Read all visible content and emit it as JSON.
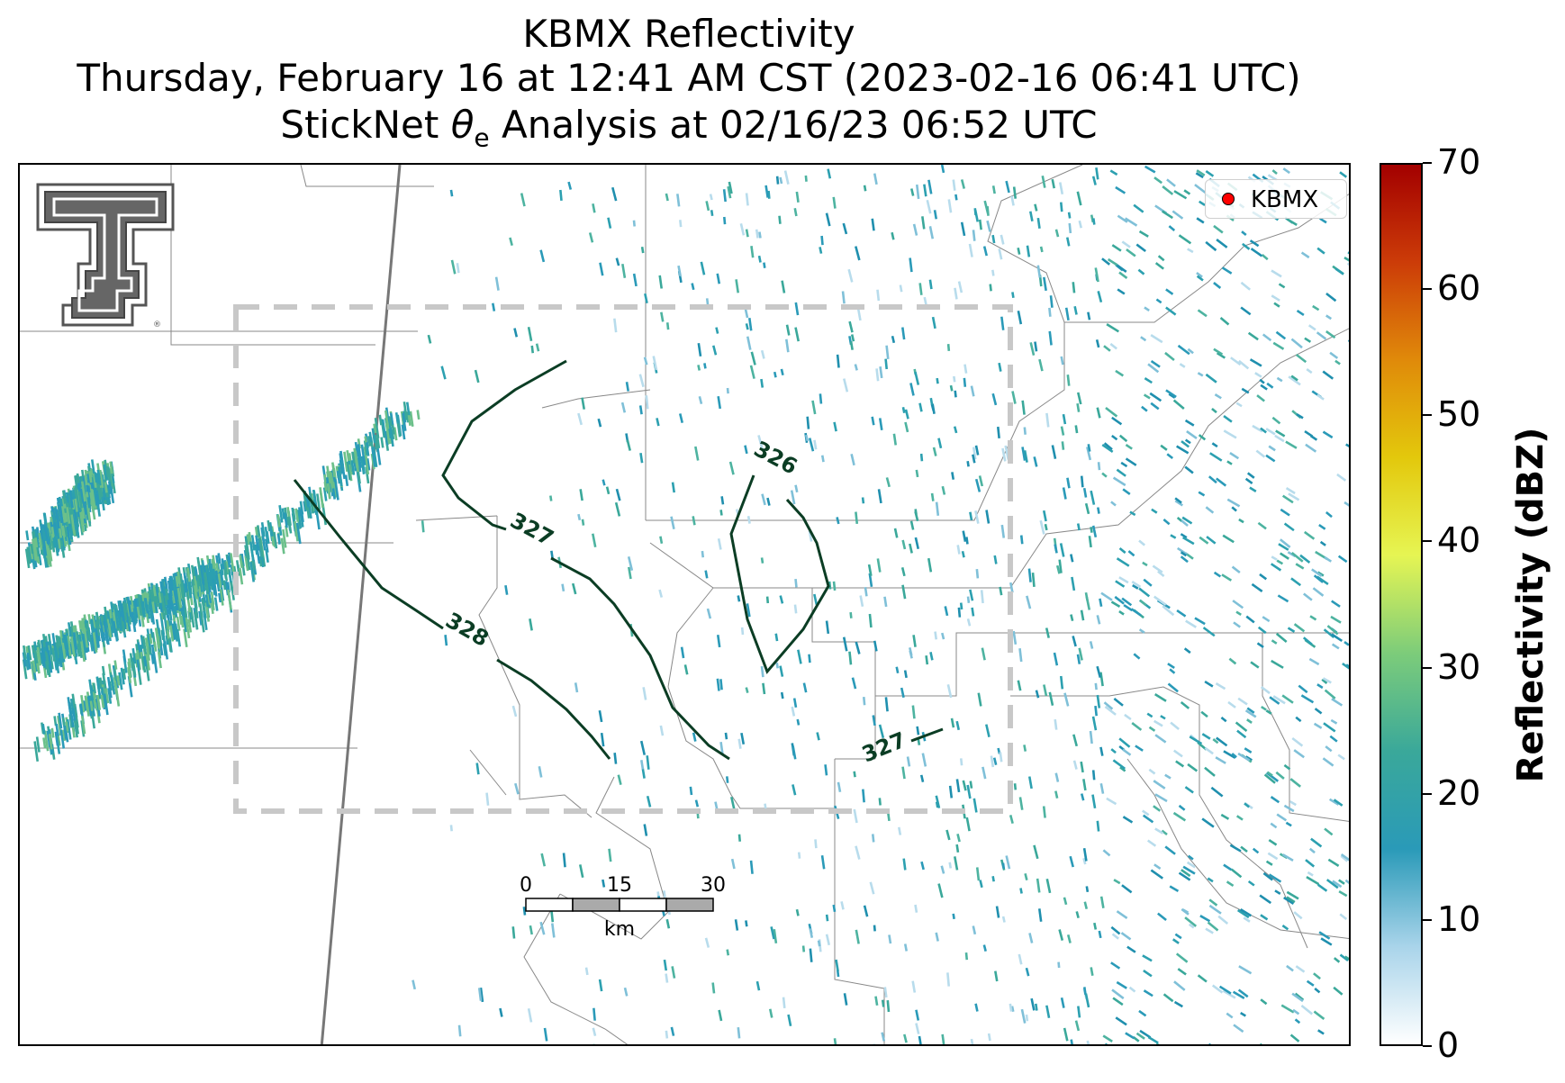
{
  "title": {
    "line1": "KBMX Reflectivity",
    "line2": "Thursday, February 16 at 12:41 AM CST (2023-02-16 06:41 UTC)",
    "line3_prefix": "StickNet ",
    "line3_symbol": "θ",
    "line3_subscript": "e",
    "line3_suffix": " Analysis at 02/16/23 06:52 UTC"
  },
  "legend": {
    "label": "KBMX",
    "marker_color": "#ff0000"
  },
  "contours": {
    "labels": [
      "326",
      "327",
      "327",
      "328"
    ],
    "color": "#0b3d24"
  },
  "scale_bar": {
    "ticks": [
      "0",
      "15",
      "30"
    ],
    "unit": "km"
  },
  "colorbar": {
    "title": "Reflectivity (dBZ)",
    "ticks": [
      "0",
      "10",
      "20",
      "30",
      "40",
      "50",
      "60",
      "70"
    ],
    "min": 0,
    "max": 70,
    "colors": [
      "#ffffff",
      "#a9d4ea",
      "#2a9ab8",
      "#3aa89a",
      "#7ccc7a",
      "#e6f553",
      "#e3c80c",
      "#e08a0a",
      "#cc3c08",
      "#a30000"
    ]
  },
  "logo": {
    "name": "texas-tech-double-t-logo",
    "color": "#666666"
  },
  "analysis_domain": {
    "style": "dashed",
    "color": "#c8c8c8"
  }
}
